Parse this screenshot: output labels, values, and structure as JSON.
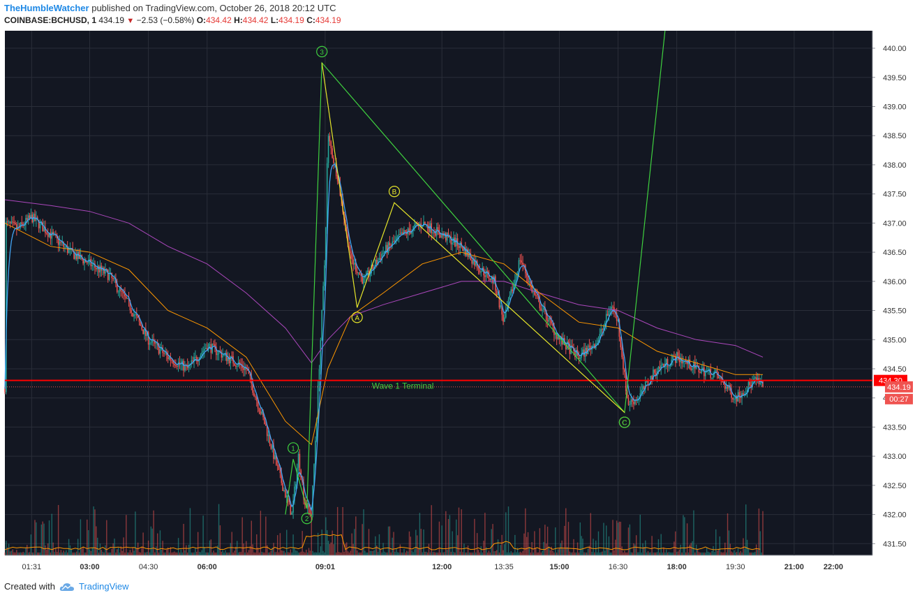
{
  "header": {
    "author": "TheHumbleWatcher",
    "published_text": "published on TradingView.com, October 26, 2018 20:12 UTC",
    "symbol": "COINBASE:BCHUSD, 1",
    "last": "434.19",
    "change": "−2.53 (−0.58%)",
    "o_label": "O:",
    "o": "434.42",
    "h_label": "H:",
    "h": "434.42",
    "l_label": "L:",
    "l": "434.19",
    "c_label": "C:",
    "c": "434.19"
  },
  "footer": {
    "created_with": "Created with",
    "brand": "TradingView"
  },
  "colors": {
    "background": "#131722",
    "grid": "#2a2e39",
    "up": "#26a69a",
    "down": "#ef5350",
    "ema_fast": "#42a5f5",
    "ema_mid": "#ff9800",
    "ema_slow": "#ab47bc",
    "wave_green": "#3fd13f",
    "wave_yellow": "#e6e62a",
    "terminal": "#ff0000"
  },
  "chart_data": {
    "type": "candlestick",
    "x_ticks": [
      "01:31",
      "03:00",
      "04:30",
      "06:00",
      "09:01",
      "12:00",
      "13:35",
      "15:00",
      "16:30",
      "18:00",
      "19:30",
      "21:00",
      "22:00"
    ],
    "y_ticks": [
      "431.50",
      "432.00",
      "432.50",
      "433.00",
      "433.50",
      "434.00",
      "434.50",
      "435.00",
      "435.50",
      "436.00",
      "436.50",
      "437.00",
      "437.50",
      "438.00",
      "438.50",
      "439.00",
      "439.50",
      "440.00"
    ],
    "ylim": [
      431.3,
      440.3
    ],
    "price_path": [
      [
        "00:50",
        437.0
      ],
      [
        "01:10",
        436.9
      ],
      [
        "01:31",
        437.1
      ],
      [
        "02:00",
        436.8
      ],
      [
        "02:30",
        436.5
      ],
      [
        "03:00",
        436.3
      ],
      [
        "03:30",
        436.1
      ],
      [
        "04:00",
        435.6
      ],
      [
        "04:30",
        435.0
      ],
      [
        "05:00",
        434.7
      ],
      [
        "05:30",
        434.5
      ],
      [
        "06:00",
        434.9
      ],
      [
        "06:30",
        434.7
      ],
      [
        "07:00",
        434.5
      ],
      [
        "07:30",
        433.5
      ],
      [
        "07:50",
        432.7
      ],
      [
        "08:10",
        432.0
      ],
      [
        "08:20",
        433.0
      ],
      [
        "08:30",
        432.2
      ],
      [
        "08:40",
        432.0
      ],
      [
        "09:01",
        436.5
      ],
      [
        "09:05",
        438.5
      ],
      [
        "09:20",
        437.8
      ],
      [
        "09:40",
        436.4
      ],
      [
        "10:00",
        436.0
      ],
      [
        "10:30",
        436.5
      ],
      [
        "11:00",
        436.8
      ],
      [
        "11:30",
        437.0
      ],
      [
        "12:00",
        436.8
      ],
      [
        "12:30",
        436.6
      ],
      [
        "13:00",
        436.2
      ],
      [
        "13:20",
        436.0
      ],
      [
        "13:35",
        435.3
      ],
      [
        "14:00",
        436.4
      ],
      [
        "14:20",
        435.8
      ],
      [
        "15:00",
        435.0
      ],
      [
        "15:30",
        434.7
      ],
      [
        "16:00",
        435.0
      ],
      [
        "16:20",
        435.6
      ],
      [
        "16:30",
        435.3
      ],
      [
        "16:45",
        433.9
      ],
      [
        "17:00",
        434.0
      ],
      [
        "17:30",
        434.5
      ],
      [
        "18:00",
        434.7
      ],
      [
        "18:30",
        434.5
      ],
      [
        "19:00",
        434.4
      ],
      [
        "19:30",
        434.0
      ],
      [
        "20:00",
        434.3
      ],
      [
        "20:12",
        434.19
      ]
    ],
    "ema_mid": [
      [
        "00:50",
        437.0
      ],
      [
        "02:00",
        436.6
      ],
      [
        "03:00",
        436.5
      ],
      [
        "04:00",
        436.2
      ],
      [
        "05:00",
        435.5
      ],
      [
        "06:00",
        435.2
      ],
      [
        "07:00",
        434.7
      ],
      [
        "08:00",
        433.6
      ],
      [
        "08:40",
        433.2
      ],
      [
        "09:05",
        434.5
      ],
      [
        "09:40",
        435.4
      ],
      [
        "10:30",
        435.8
      ],
      [
        "11:30",
        436.3
      ],
      [
        "12:30",
        436.5
      ],
      [
        "13:35",
        436.3
      ],
      [
        "14:30",
        435.8
      ],
      [
        "15:30",
        435.3
      ],
      [
        "16:30",
        435.2
      ],
      [
        "17:30",
        434.8
      ],
      [
        "18:30",
        434.6
      ],
      [
        "19:30",
        434.4
      ],
      [
        "20:12",
        434.4
      ]
    ],
    "ema_slow": [
      [
        "00:50",
        437.4
      ],
      [
        "02:00",
        437.3
      ],
      [
        "03:00",
        437.2
      ],
      [
        "04:00",
        437.0
      ],
      [
        "05:00",
        436.6
      ],
      [
        "06:00",
        436.3
      ],
      [
        "07:00",
        435.8
      ],
      [
        "08:00",
        435.2
      ],
      [
        "08:40",
        434.6
      ],
      [
        "09:05",
        435.0
      ],
      [
        "09:40",
        435.4
      ],
      [
        "10:30",
        435.6
      ],
      [
        "11:30",
        435.8
      ],
      [
        "12:30",
        436.0
      ],
      [
        "13:35",
        436.0
      ],
      [
        "14:30",
        435.8
      ],
      [
        "15:30",
        435.6
      ],
      [
        "16:30",
        435.5
      ],
      [
        "17:30",
        435.2
      ],
      [
        "18:30",
        435.0
      ],
      [
        "19:30",
        434.9
      ],
      [
        "20:12",
        434.7
      ]
    ],
    "elliott_waves": {
      "motive": [
        {
          "label": "1",
          "time": "08:12",
          "price": 432.95,
          "anchor": "above"
        },
        {
          "label": "2",
          "time": "08:33",
          "price": 432.1,
          "anchor": "below"
        },
        {
          "label": "3",
          "time": "08:56",
          "price": 439.75,
          "anchor": "above"
        },
        {
          "label": "C",
          "time": "16:40",
          "price": 433.75,
          "anchor": "below"
        }
      ],
      "motive_start": {
        "time": "08:00",
        "price": 432.0
      },
      "motive_extension": {
        "time": "17:42",
        "price": 440.3
      },
      "corrective": [
        {
          "label": "3",
          "time": "08:56",
          "price": 439.75,
          "anchor": "none"
        },
        {
          "label": "A",
          "time": "09:50",
          "price": 435.55,
          "anchor": "below"
        },
        {
          "label": "B",
          "time": "10:47",
          "price": 437.35,
          "anchor": "above"
        },
        {
          "label": "C",
          "time": "16:40",
          "price": 433.75,
          "anchor": "below"
        }
      ]
    },
    "horizontal_line": {
      "label": "Wave 1 Terminal",
      "price": 434.3,
      "price_label": "434.30"
    },
    "last_price": {
      "price": 434.19,
      "label": "434.19",
      "countdown": "00:27"
    }
  }
}
